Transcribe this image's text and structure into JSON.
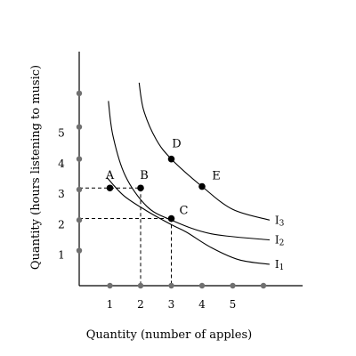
{
  "chart_data": {
    "type": "line",
    "title": "",
    "xlabel": "Quantity (number of apples)",
    "ylabel": "Quantity (hours listening to music)",
    "xlim": [
      0,
      6.5
    ],
    "ylim": [
      0,
      7.5
    ],
    "x_ticks": [
      1,
      2,
      3,
      4,
      5
    ],
    "y_ticks": [
      1,
      2,
      3,
      4,
      5
    ],
    "x_axis_dots": [
      1,
      2,
      3,
      4,
      5,
      6
    ],
    "y_axis_dots": [
      1.15,
      2.15,
      3.15,
      4.15,
      5.2,
      6.3
    ],
    "grid": false,
    "series": [
      {
        "name": "I1",
        "label_main": "I",
        "label_sub": "1",
        "x": [
          0.9,
          1.45,
          2.2,
          3.0,
          3.5,
          4.3,
          5.2,
          6.2
        ],
        "y": [
          3.55,
          2.95,
          2.45,
          2.0,
          1.75,
          1.25,
          0.85,
          0.7
        ]
      },
      {
        "name": "I2",
        "label_main": "I",
        "label_sub": "2",
        "x": [
          0.95,
          1.1,
          1.5,
          2.2,
          3.0,
          4.3,
          6.2
        ],
        "y": [
          6.05,
          4.9,
          3.6,
          2.6,
          2.15,
          1.7,
          1.5
        ]
      },
      {
        "name": "I3",
        "label_main": "I",
        "label_sub": "3",
        "x": [
          1.95,
          2.1,
          2.5,
          3.0,
          4.0,
          5.0,
          6.2
        ],
        "y": [
          6.65,
          5.75,
          4.8,
          4.15,
          3.25,
          2.5,
          2.15
        ]
      }
    ],
    "points": [
      {
        "label": "A",
        "x": 1.0,
        "y": 3.2
      },
      {
        "label": "B",
        "x": 2.0,
        "y": 3.2
      },
      {
        "label": "C",
        "x": 3.0,
        "y": 2.2
      },
      {
        "label": "D",
        "x": 3.0,
        "y": 4.15
      },
      {
        "label": "E",
        "x": 4.0,
        "y": 3.25
      }
    ],
    "dashed_guides": [
      {
        "from": "A",
        "x": 0,
        "y": 3.2,
        "to_x": 2.0
      },
      {
        "from": "C",
        "x": 0,
        "y": 2.2,
        "to_x": 3.0
      },
      {
        "from": "B",
        "x": 2.0,
        "y": 3.2,
        "to_y": 0
      },
      {
        "from": "C",
        "x": 3.0,
        "y": 2.2,
        "to_y": 0
      }
    ]
  }
}
